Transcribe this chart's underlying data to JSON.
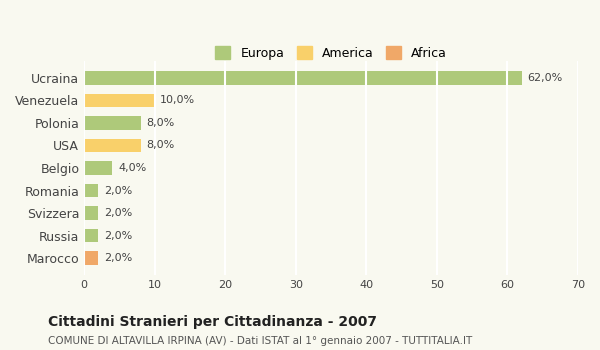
{
  "categories": [
    "Ucraina",
    "Venezuela",
    "Polonia",
    "USA",
    "Belgio",
    "Romania",
    "Svizzera",
    "Russia",
    "Marocco"
  ],
  "values": [
    62.0,
    10.0,
    8.0,
    8.0,
    4.0,
    2.0,
    2.0,
    2.0,
    2.0
  ],
  "labels": [
    "62,0%",
    "10,0%",
    "8,0%",
    "8,0%",
    "4,0%",
    "2,0%",
    "2,0%",
    "2,0%",
    "2,0%"
  ],
  "colors": [
    "#aec97a",
    "#f9d06a",
    "#aec97a",
    "#f9d06a",
    "#aec97a",
    "#aec97a",
    "#aec97a",
    "#aec97a",
    "#f0a868"
  ],
  "continent": [
    "Europa",
    "America",
    "Europa",
    "America",
    "Europa",
    "Europa",
    "Europa",
    "Europa",
    "Africa"
  ],
  "legend_labels": [
    "Europa",
    "America",
    "Africa"
  ],
  "legend_colors": [
    "#aec97a",
    "#f9d06a",
    "#f0a868"
  ],
  "xlim": [
    0,
    70
  ],
  "xticks": [
    0,
    10,
    20,
    30,
    40,
    50,
    60,
    70
  ],
  "title": "Cittadini Stranieri per Cittadinanza - 2007",
  "subtitle": "COMUNE DI ALTAVILLA IRPINA (AV) - Dati ISTAT al 1° gennaio 2007 - TUTTITALIA.IT",
  "background_color": "#f9f9f0",
  "grid_color": "#ffffff",
  "bar_height": 0.6
}
